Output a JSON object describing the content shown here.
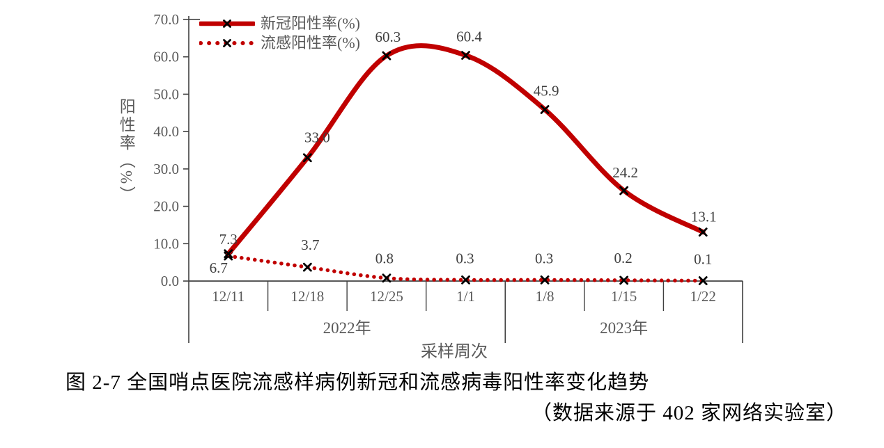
{
  "figure": {
    "caption": "图 2-7 全国哨点医院流感样病例新冠和流感病毒阳性率变化趋势",
    "source_note": "（数据来源于 402 家网络实验室）"
  },
  "chart_data": {
    "type": "line",
    "title": "",
    "xlabel": "采样周次",
    "ylabel": "阳性率（%）",
    "ylim": [
      0,
      70
    ],
    "y_tick_step": 10,
    "y_tick_labels": [
      "0.0",
      "10.0",
      "20.0",
      "30.0",
      "40.0",
      "50.0",
      "60.0",
      "70.0"
    ],
    "grid": false,
    "legend_position": "top-left",
    "categories": [
      "12/11",
      "12/18",
      "12/25",
      "1/1",
      "1/8",
      "1/15",
      "1/22"
    ],
    "x_groups": [
      {
        "label": "2022年",
        "from": 0,
        "to": 3
      },
      {
        "label": "2023年",
        "from": 4,
        "to": 6
      }
    ],
    "series": [
      {
        "name": "新冠阳性率(%)",
        "style": "solid",
        "marker": "x",
        "color": "#c00000",
        "values": [
          7.3,
          33.0,
          60.3,
          60.4,
          45.9,
          24.2,
          13.1
        ]
      },
      {
        "name": "流感阳性率(%)",
        "style": "dotted",
        "marker": "x",
        "color": "#c00000",
        "values": [
          6.7,
          3.7,
          0.8,
          0.3,
          0.3,
          0.2,
          0.1
        ]
      }
    ],
    "colors": {
      "series": "#c00000",
      "marker": "#000000",
      "axis": "#404040",
      "tick_text": "#595959",
      "value_label": "#3f3f3f"
    }
  }
}
